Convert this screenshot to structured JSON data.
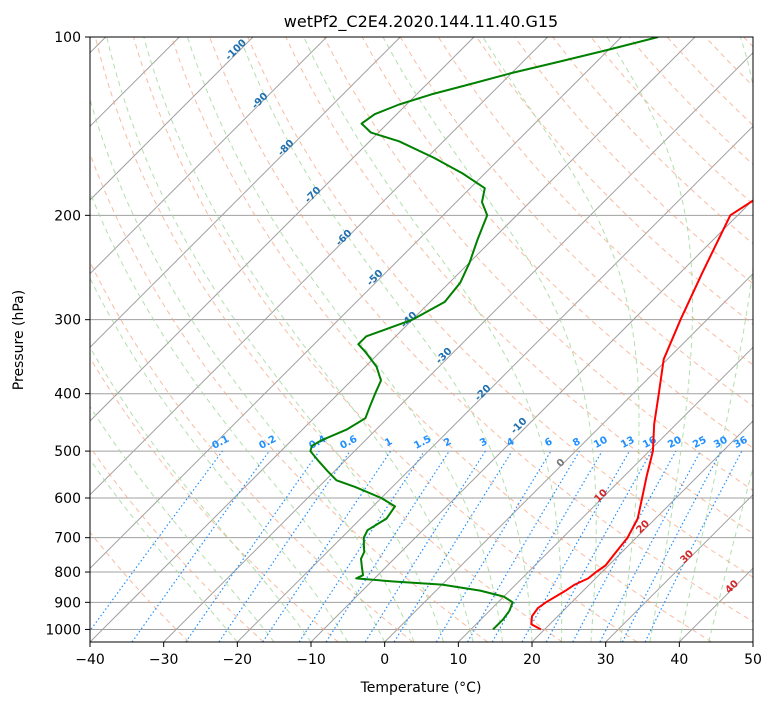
{
  "chart_data": {
    "type": "line",
    "title": "wetPf2_C2E4.2020.144.11.40.G15",
    "xlabel": "Temperature (°C)",
    "ylabel": "Pressure (hPa)",
    "xlim": [
      -40,
      50
    ],
    "ylim": [
      1050,
      100
    ],
    "y_scale": "log",
    "grid": true,
    "x_ticks": [
      -40,
      -30,
      -20,
      -10,
      0,
      10,
      20,
      30,
      40,
      50
    ],
    "y_ticks": [
      100,
      200,
      300,
      400,
      500,
      600,
      700,
      800,
      900,
      1000
    ],
    "series": [
      {
        "name": "",
        "color": "#ff0000",
        "points": [
          [
            1000,
            19.5
          ],
          [
            980,
            17.5
          ],
          [
            950,
            16.5
          ],
          [
            920,
            16.2
          ],
          [
            900,
            16.5
          ],
          [
            860,
            17.6
          ],
          [
            840,
            18.0
          ],
          [
            820,
            19.0
          ],
          [
            800,
            19.2
          ],
          [
            780,
            19.6
          ],
          [
            750,
            19.3
          ],
          [
            700,
            18.8
          ],
          [
            650,
            17.6
          ],
          [
            600,
            15.4
          ],
          [
            550,
            13.0
          ],
          [
            500,
            10.5
          ],
          [
            450,
            7.0
          ],
          [
            400,
            3.5
          ],
          [
            350,
            -0.5
          ],
          [
            300,
            -3.6
          ],
          [
            250,
            -7.0
          ],
          [
            200,
            -11.0
          ],
          [
            180,
            -9.0
          ],
          [
            160,
            -3.0
          ],
          [
            150,
            0.5
          ],
          [
            140,
            1.8
          ],
          [
            130,
            1.6
          ],
          [
            120,
            0.8
          ],
          [
            110,
            0.2
          ],
          [
            100,
            0.1
          ]
        ]
      },
      {
        "name": "",
        "color": "#008000",
        "points": [
          [
            1000,
            13.0
          ],
          [
            960,
            13.0
          ],
          [
            930,
            12.7
          ],
          [
            900,
            12.0
          ],
          [
            880,
            10.0
          ],
          [
            860,
            6.0
          ],
          [
            840,
            0.0
          ],
          [
            830,
            -7.0
          ],
          [
            820,
            -12.5
          ],
          [
            810,
            -12.0
          ],
          [
            800,
            -12.5
          ],
          [
            790,
            -13.0
          ],
          [
            760,
            -14.5
          ],
          [
            740,
            -15.0
          ],
          [
            720,
            -16.0
          ],
          [
            700,
            -17.0
          ],
          [
            680,
            -17.5
          ],
          [
            650,
            -16.5
          ],
          [
            620,
            -17.0
          ],
          [
            600,
            -20.0
          ],
          [
            575,
            -25.0
          ],
          [
            560,
            -28.5
          ],
          [
            540,
            -31.0
          ],
          [
            520,
            -33.5
          ],
          [
            500,
            -36.0
          ],
          [
            490,
            -36.5
          ],
          [
            480,
            -36.0
          ],
          [
            460,
            -34.0
          ],
          [
            440,
            -33.0
          ],
          [
            420,
            -34.0
          ],
          [
            400,
            -35.0
          ],
          [
            380,
            -36.0
          ],
          [
            360,
            -38.5
          ],
          [
            340,
            -42.0
          ],
          [
            330,
            -44.0
          ],
          [
            320,
            -44.0
          ],
          [
            310,
            -42.0
          ],
          [
            300,
            -40.0
          ],
          [
            280,
            -38.0
          ],
          [
            260,
            -38.5
          ],
          [
            240,
            -40.0
          ],
          [
            220,
            -42.0
          ],
          [
            200,
            -44.0
          ],
          [
            190,
            -46.5
          ],
          [
            180,
            -48.0
          ],
          [
            170,
            -53.0
          ],
          [
            160,
            -59.0
          ],
          [
            150,
            -66.0
          ],
          [
            145,
            -71.0
          ],
          [
            140,
            -73.5
          ],
          [
            135,
            -73.0
          ],
          [
            130,
            -71.0
          ],
          [
            125,
            -68.0
          ],
          [
            120,
            -64.0
          ],
          [
            115,
            -60.0
          ],
          [
            110,
            -55.0
          ],
          [
            105,
            -50.0
          ],
          [
            100,
            -45.0
          ]
        ]
      }
    ],
    "dry_adiabat_labels": [
      -100,
      -90,
      -80,
      -70,
      -60,
      -50,
      -40,
      -30,
      -20,
      -10
    ],
    "mixing_ratio_labels": [
      "0.1",
      "0.2",
      "0.4",
      "0.6",
      "1",
      "1.5",
      "2",
      "3",
      "4",
      "6",
      "8",
      "10",
      "13",
      "16",
      "20",
      "25",
      "30",
      "36"
    ],
    "moist_adiabat_labels": [
      "0",
      "10",
      "20",
      "30",
      "40"
    ],
    "colors": {
      "temperature": "#ff0000",
      "dewpoint": "#008000",
      "isotherm": "#a0a0a0",
      "dry_adiabat": "#f4a582",
      "moist_adiabat": "#a6d8a0",
      "mixing_ratio": "#1e90ff"
    }
  }
}
